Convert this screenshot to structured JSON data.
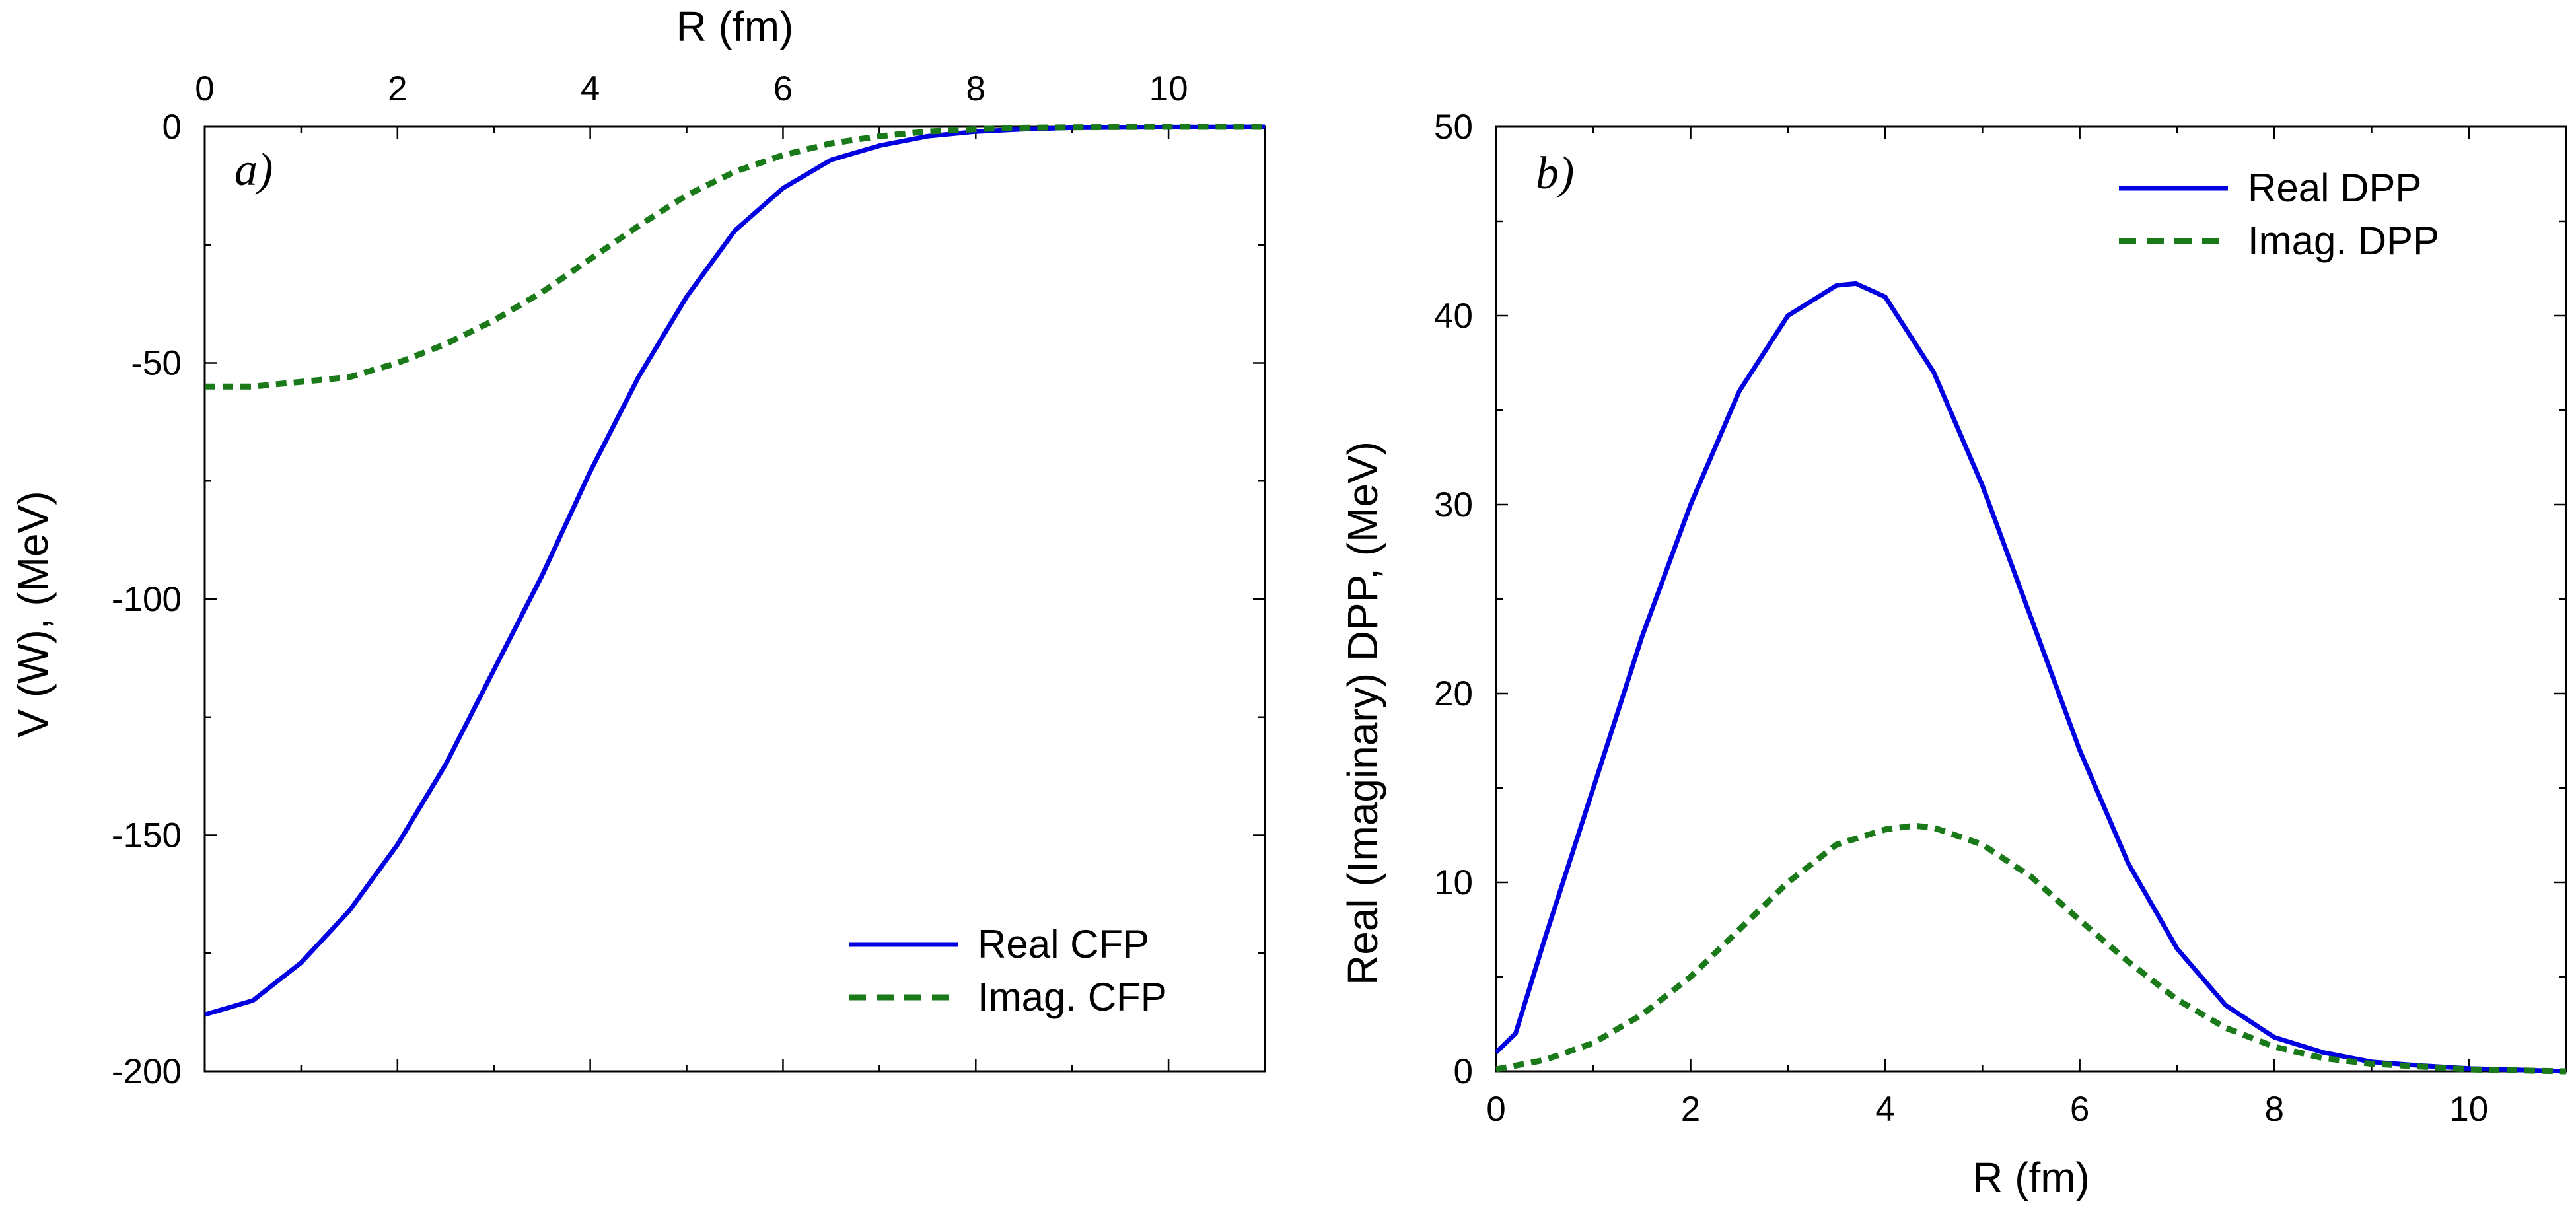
{
  "chart_data": [
    {
      "type": "line",
      "panel_label": "a)",
      "xlabel": "R (fm)",
      "ylabel": "V (W), (MeV)",
      "xlim": [
        0,
        11
      ],
      "ylim": [
        -200,
        0
      ],
      "x_axis_position": "top",
      "x_ticks": [
        0,
        2,
        4,
        6,
        8,
        10
      ],
      "y_ticks": [
        0,
        -50,
        -100,
        -150,
        -200
      ],
      "grid": false,
      "legend_position": "bottom-right",
      "series": [
        {
          "name": "Real CFP",
          "color": "#0000e0",
          "style": "solid",
          "x": [
            0,
            0.5,
            1,
            1.5,
            2,
            2.5,
            3,
            3.5,
            4,
            4.5,
            5,
            5.5,
            6,
            6.5,
            7,
            7.5,
            8,
            8.5,
            9,
            10,
            11
          ],
          "y": [
            -188,
            -185,
            -177,
            -166,
            -152,
            -135,
            -115,
            -95,
            -73,
            -53,
            -36,
            -22,
            -13,
            -7,
            -4,
            -2,
            -1,
            -0.5,
            -0.2,
            -0.05,
            0
          ]
        },
        {
          "name": "Imag. CFP",
          "color": "#1a7a1a",
          "style": "dashed",
          "x": [
            0,
            0.5,
            1,
            1.5,
            2,
            2.5,
            3,
            3.5,
            4,
            4.5,
            5,
            5.5,
            6,
            6.5,
            7,
            7.5,
            8,
            8.5,
            9,
            10,
            11
          ],
          "y": [
            -55,
            -55,
            -54,
            -53,
            -50,
            -46,
            -41,
            -35,
            -28,
            -21,
            -14.5,
            -9.5,
            -6,
            -3.5,
            -2,
            -1,
            -0.5,
            -0.2,
            -0.1,
            0,
            0
          ]
        }
      ]
    },
    {
      "type": "line",
      "panel_label": "b)",
      "xlabel": "R (fm)",
      "ylabel": "Real (Imaginary) DPP, (MeV)",
      "xlim": [
        0,
        11
      ],
      "ylim": [
        0,
        50
      ],
      "x_axis_position": "bottom",
      "x_ticks": [
        0,
        2,
        4,
        6,
        8,
        10
      ],
      "y_ticks": [
        0,
        10,
        20,
        30,
        40,
        50
      ],
      "grid": false,
      "legend_position": "top-right",
      "series": [
        {
          "name": "Real DPP",
          "color": "#0000e0",
          "style": "solid",
          "x": [
            0,
            0.2,
            0.5,
            1,
            1.5,
            2,
            2.5,
            3,
            3.5,
            3.7,
            4,
            4.5,
            5,
            5.5,
            6,
            6.5,
            7,
            7.5,
            8,
            8.5,
            9,
            9.5,
            10,
            11
          ],
          "y": [
            1,
            2,
            7,
            15,
            23,
            30,
            36,
            40,
            41.6,
            41.7,
            41,
            37,
            31,
            24,
            17,
            11,
            6.5,
            3.5,
            1.8,
            1,
            0.5,
            0.3,
            0.15,
            0
          ]
        },
        {
          "name": "Imag. DPP",
          "color": "#1a7a1a",
          "style": "dashed",
          "x": [
            0,
            0.5,
            1,
            1.5,
            2,
            2.5,
            3,
            3.5,
            4,
            4.3,
            4.5,
            5,
            5.5,
            6,
            6.5,
            7,
            7.5,
            8,
            8.5,
            9,
            10,
            11
          ],
          "y": [
            0.1,
            0.6,
            1.5,
            3,
            5,
            7.5,
            10,
            12,
            12.8,
            13,
            12.9,
            12,
            10.3,
            8,
            5.8,
            3.8,
            2.3,
            1.3,
            0.7,
            0.4,
            0.1,
            0
          ]
        }
      ]
    }
  ]
}
